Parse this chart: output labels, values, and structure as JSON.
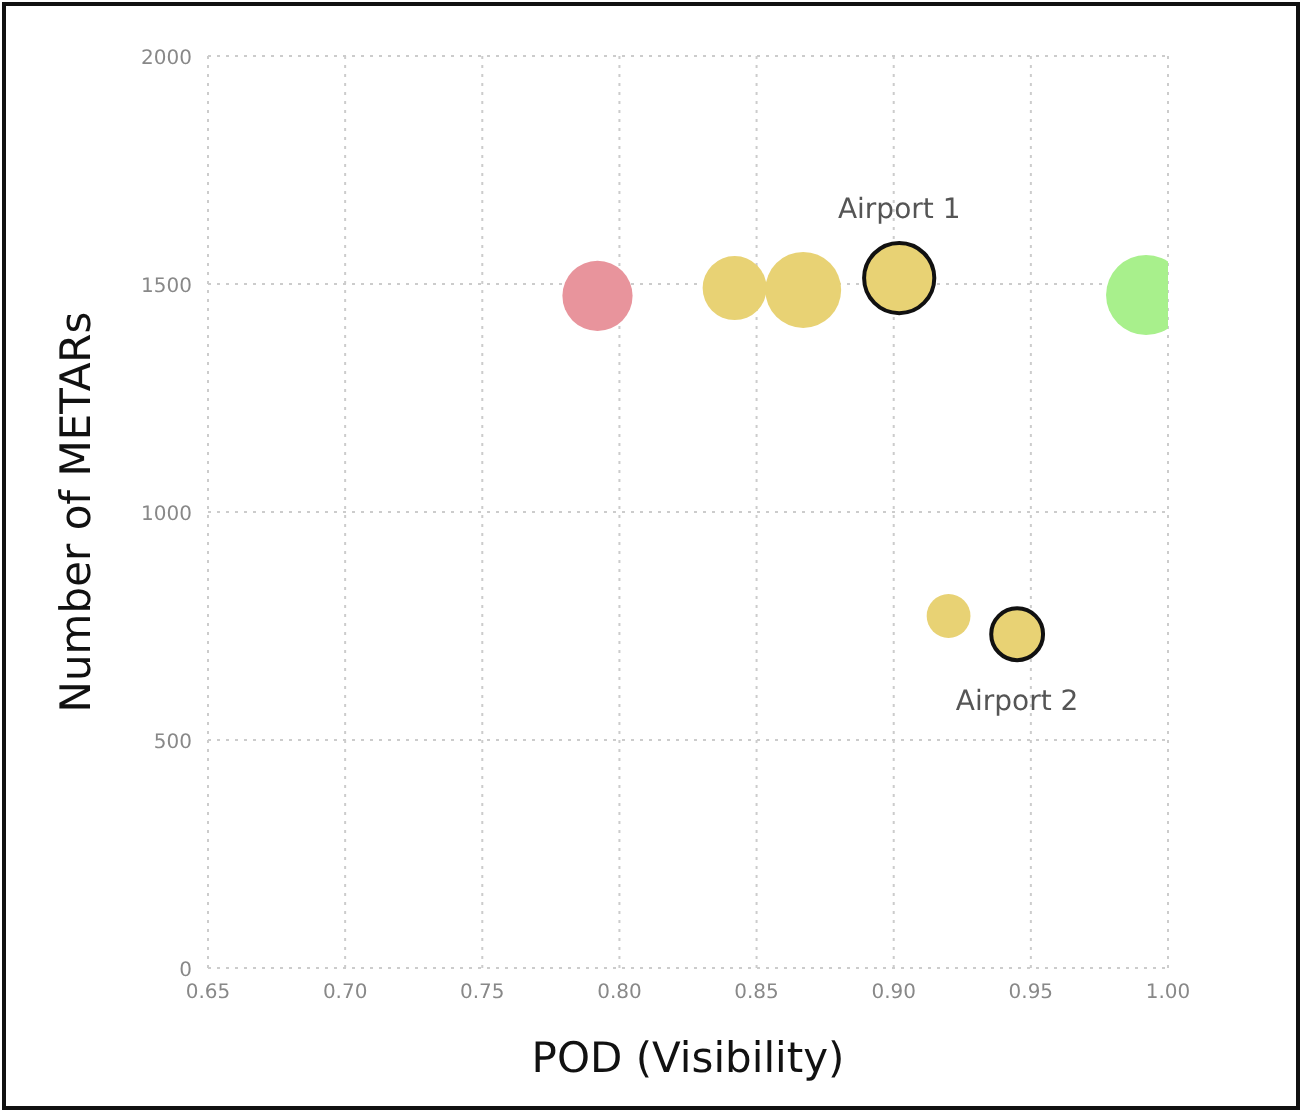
{
  "chart_data": {
    "type": "bubble",
    "xlabel": "POD (Visibility)",
    "ylabel": "Number of METARs",
    "x": [
      0.792,
      0.842,
      0.867,
      0.902,
      0.992,
      0.92,
      0.945
    ],
    "values": [
      1474,
      1491,
      1487,
      1513,
      1476,
      772,
      732
    ],
    "sizes": [
      0.77,
      0.64,
      0.9,
      0.77,
      1,
      0.3,
      0.42
    ],
    "colors": [
      "#e8949c",
      "#e8d274",
      "#e8d274",
      "#e8d274",
      "#a8f08c",
      "#e8d274",
      "#e8d274"
    ],
    "xlim": [
      0.65,
      1.0
    ],
    "xticks": [
      {
        "value": 0.65,
        "label": "0.65"
      },
      {
        "value": 0.7,
        "label": "0.70"
      },
      {
        "value": 0.75,
        "label": "0.75"
      },
      {
        "value": 0.8,
        "label": "0.80"
      },
      {
        "value": 0.85,
        "label": "0.85"
      },
      {
        "value": 0.9,
        "label": "0.90"
      },
      {
        "value": 0.95,
        "label": "0.95"
      },
      {
        "value": 1.0,
        "label": "1.00"
      }
    ],
    "ylim": [
      0,
      2000
    ],
    "yticks": [
      0,
      500,
      1000,
      1500,
      2000
    ],
    "grid": true,
    "marker": "circle",
    "annotations": [
      {
        "text": "Airport 1",
        "x": 0.902,
        "y": 1513
      },
      {
        "text": "Airport 2",
        "x": 0.945,
        "y": 732
      }
    ]
  }
}
